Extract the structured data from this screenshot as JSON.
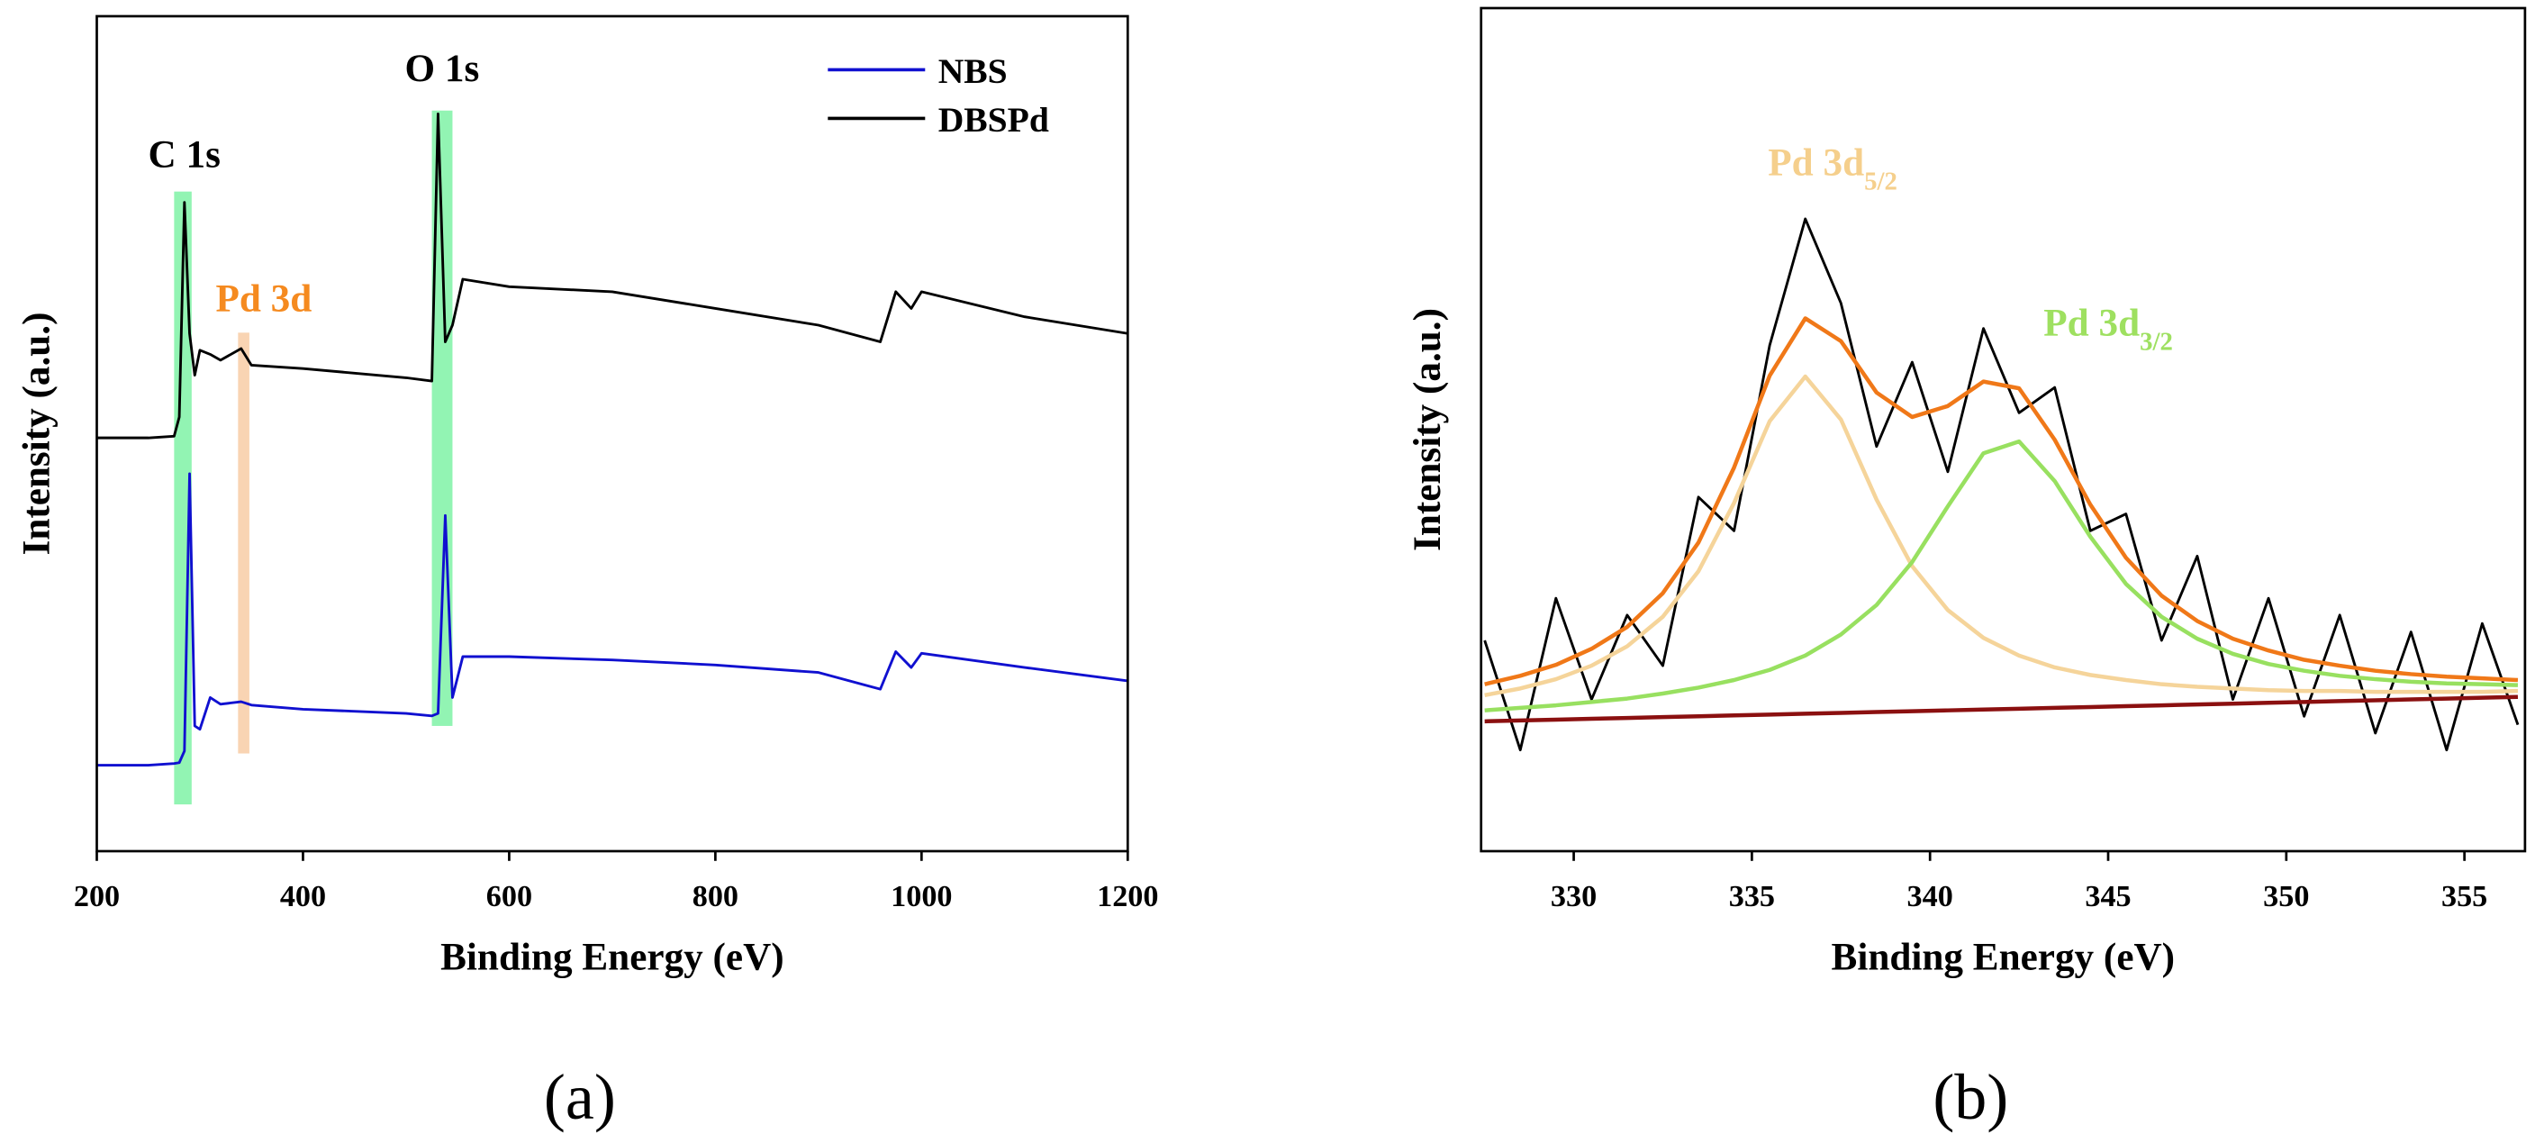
{
  "chart_data": [
    {
      "type": "line",
      "caption": "(a)",
      "x_label": "Binding Energy (eV)",
      "y_label": "Intensity (a.u.)",
      "xlim": [
        200,
        1200
      ],
      "xticks": [
        200,
        400,
        600,
        800,
        1000,
        1200
      ],
      "ylim": [
        0,
        100
      ],
      "legend": "upper right",
      "x": [
        200,
        250,
        275,
        280,
        285,
        290,
        295,
        300,
        310,
        320,
        340,
        350,
        400,
        500,
        525,
        531,
        538,
        545,
        555,
        600,
        700,
        800,
        900,
        960,
        975,
        990,
        1000,
        1100,
        1200
      ],
      "series": [
        {
          "name": "NBS",
          "color": "#1010d0",
          "values": [
            10.3,
            10.3,
            10.5,
            10.6,
            12,
            45.2,
            15,
            14.6,
            18.4,
            17.6,
            17.9,
            17.5,
            17,
            16.5,
            16.2,
            16.5,
            40.2,
            18.4,
            23.3,
            23.3,
            22.9,
            22.3,
            21.4,
            19.4,
            23.9,
            22,
            23.7,
            22,
            20.4
          ]
        },
        {
          "name": "DBSPd",
          "color": "#000000",
          "values": [
            49.5,
            49.5,
            49.7,
            52,
            77.7,
            62,
            57,
            60,
            59.5,
            58.8,
            60.2,
            58.2,
            57.8,
            56.7,
            56.3,
            88.3,
            61,
            63,
            68.5,
            67.6,
            67,
            65,
            63,
            61,
            67,
            65,
            67,
            64,
            62
          ]
        }
      ],
      "highlights": [
        {
          "x": [
            275,
            292
          ],
          "y": [
            5.6,
            79
          ],
          "color": "#7ff2a6"
        },
        {
          "x": [
            337,
            348
          ],
          "y": [
            11.7,
            62.1
          ],
          "color": "#f8cda6"
        },
        {
          "x": [
            525,
            545
          ],
          "y": [
            15,
            88.7
          ],
          "color": "#7ff2a6"
        }
      ],
      "annotations": [
        {
          "text": "C 1s",
          "color": "#000000"
        },
        {
          "text": "Pd 3d",
          "color": "#f58a1f"
        },
        {
          "text": "O 1s",
          "color": "#000000"
        }
      ]
    },
    {
      "type": "line",
      "caption": "(b)",
      "x_label": "Binding Energy (eV)",
      "y_label": "Intensity (a.u.)",
      "xlim": [
        327.4,
        356.7
      ],
      "xticks": [
        330,
        335,
        340,
        345,
        350,
        355
      ],
      "ylim": [
        0,
        100
      ],
      "x": [
        327.5,
        328.5,
        329.5,
        330.5,
        331.5,
        332.5,
        333.5,
        334.5,
        335.5,
        336.5,
        337.5,
        338.5,
        339.5,
        340.5,
        341.5,
        342.5,
        343.5,
        344.5,
        345.5,
        346.5,
        347.5,
        348.5,
        349.5,
        350.5,
        351.5,
        352.5,
        353.5,
        354.5,
        355.5,
        356.5
      ],
      "series": [
        {
          "color": "#000000",
          "values": [
            25,
            12,
            30,
            18,
            28,
            22,
            42,
            38,
            60,
            75,
            65,
            48,
            58,
            45,
            62,
            52,
            55,
            38,
            40,
            25,
            35,
            18,
            30,
            16,
            28,
            14,
            26,
            12,
            27,
            15
          ]
        },
        {
          "color": "#8b1010",
          "values": [
            15.4,
            15.5,
            15.6,
            15.7,
            15.8,
            15.9,
            16.0,
            16.1,
            16.2,
            16.3,
            16.4,
            16.5,
            16.6,
            16.7,
            16.8,
            16.9,
            17.0,
            17.1,
            17.2,
            17.3,
            17.4,
            17.5,
            17.6,
            17.7,
            17.8,
            17.9,
            18.0,
            18.1,
            18.2,
            18.3
          ]
        },
        {
          "color": "#f5d49a",
          "values": [
            18.5,
            19.3,
            20.4,
            22.0,
            24.3,
            27.8,
            33.2,
            41.3,
            51.0,
            56.3,
            51.2,
            41.7,
            33.8,
            28.6,
            25.3,
            23.2,
            21.8,
            20.9,
            20.3,
            19.8,
            19.5,
            19.3,
            19.1,
            19.0,
            19.0,
            18.9,
            18.9,
            18.9,
            18.9,
            19.0
          ]
        },
        {
          "color": "#98e060",
          "values": [
            16.7,
            17.0,
            17.3,
            17.7,
            18.1,
            18.7,
            19.4,
            20.3,
            21.5,
            23.2,
            25.7,
            29.2,
            34.3,
            40.9,
            47.2,
            48.6,
            43.9,
            37.3,
            31.7,
            27.8,
            25.2,
            23.4,
            22.2,
            21.4,
            20.8,
            20.4,
            20.1,
            19.9,
            19.8,
            19.7
          ]
        },
        {
          "color": "#f07818",
          "values": [
            19.8,
            20.8,
            22.1,
            24.0,
            26.6,
            30.6,
            36.6,
            45.5,
            56.4,
            63.2,
            60.5,
            54.4,
            51.5,
            52.8,
            55.7,
            54.9,
            48.8,
            41.1,
            34.8,
            30.3,
            27.3,
            25.2,
            23.8,
            22.7,
            22.0,
            21.4,
            21.0,
            20.7,
            20.5,
            20.3
          ]
        }
      ],
      "annotations": [
        {
          "text": "Pd 3d",
          "sub": "5/2",
          "color": "#f5cf8c"
        },
        {
          "text": "Pd 3d",
          "sub": "3/2",
          "color": "#9ee060"
        }
      ]
    }
  ]
}
